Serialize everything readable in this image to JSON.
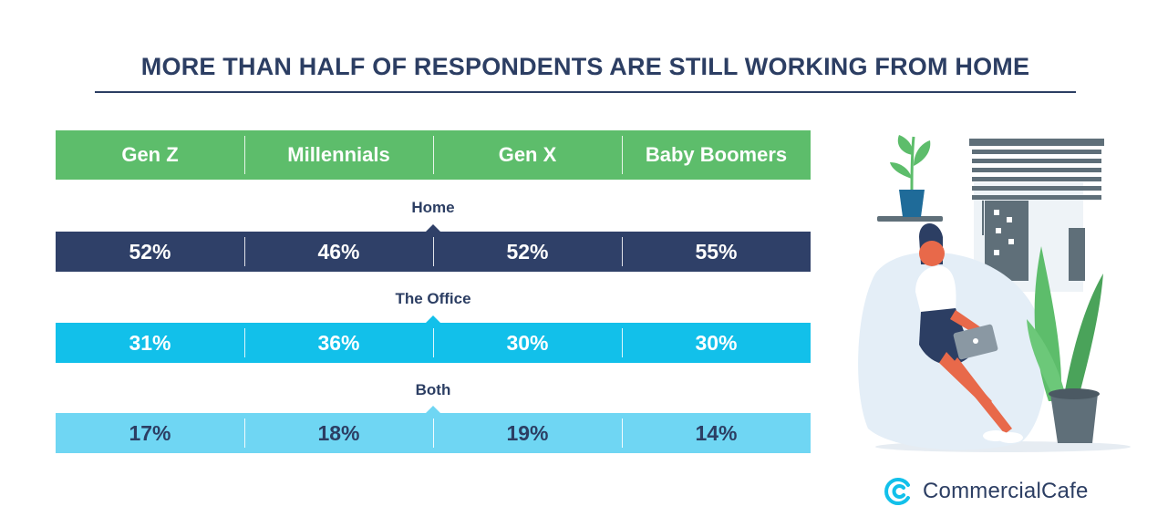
{
  "title": "MORE THAN HALF OF RESPONDENTS ARE STILL WORKING FROM HOME",
  "colors": {
    "title": "#2c3e63",
    "header": "#5dbd6b",
    "home": "#2f4068",
    "office": "#12c0ea",
    "both": "#6fd6f3"
  },
  "chart_data": {
    "type": "table",
    "title": "MORE THAN HALF OF RESPONDENTS ARE STILL WORKING FROM HOME",
    "columns": [
      "Gen Z",
      "Millennials",
      "Gen X",
      "Baby Boomers"
    ],
    "rows": [
      {
        "label": "Home",
        "values": [
          "52%",
          "46%",
          "52%",
          "55%"
        ]
      },
      {
        "label": "The Office",
        "values": [
          "31%",
          "36%",
          "30%",
          "30%"
        ]
      },
      {
        "label": "Both",
        "values": [
          "17%",
          "18%",
          "19%",
          "14%"
        ]
      }
    ]
  },
  "illustration": {
    "icons": [
      "woman-with-laptop-icon",
      "potted-plant-icon",
      "window-blinds-icon",
      "snake-plant-icon"
    ]
  },
  "logo": {
    "text": "CommercialCafe",
    "icon": "commercialcafe-logo-icon"
  }
}
